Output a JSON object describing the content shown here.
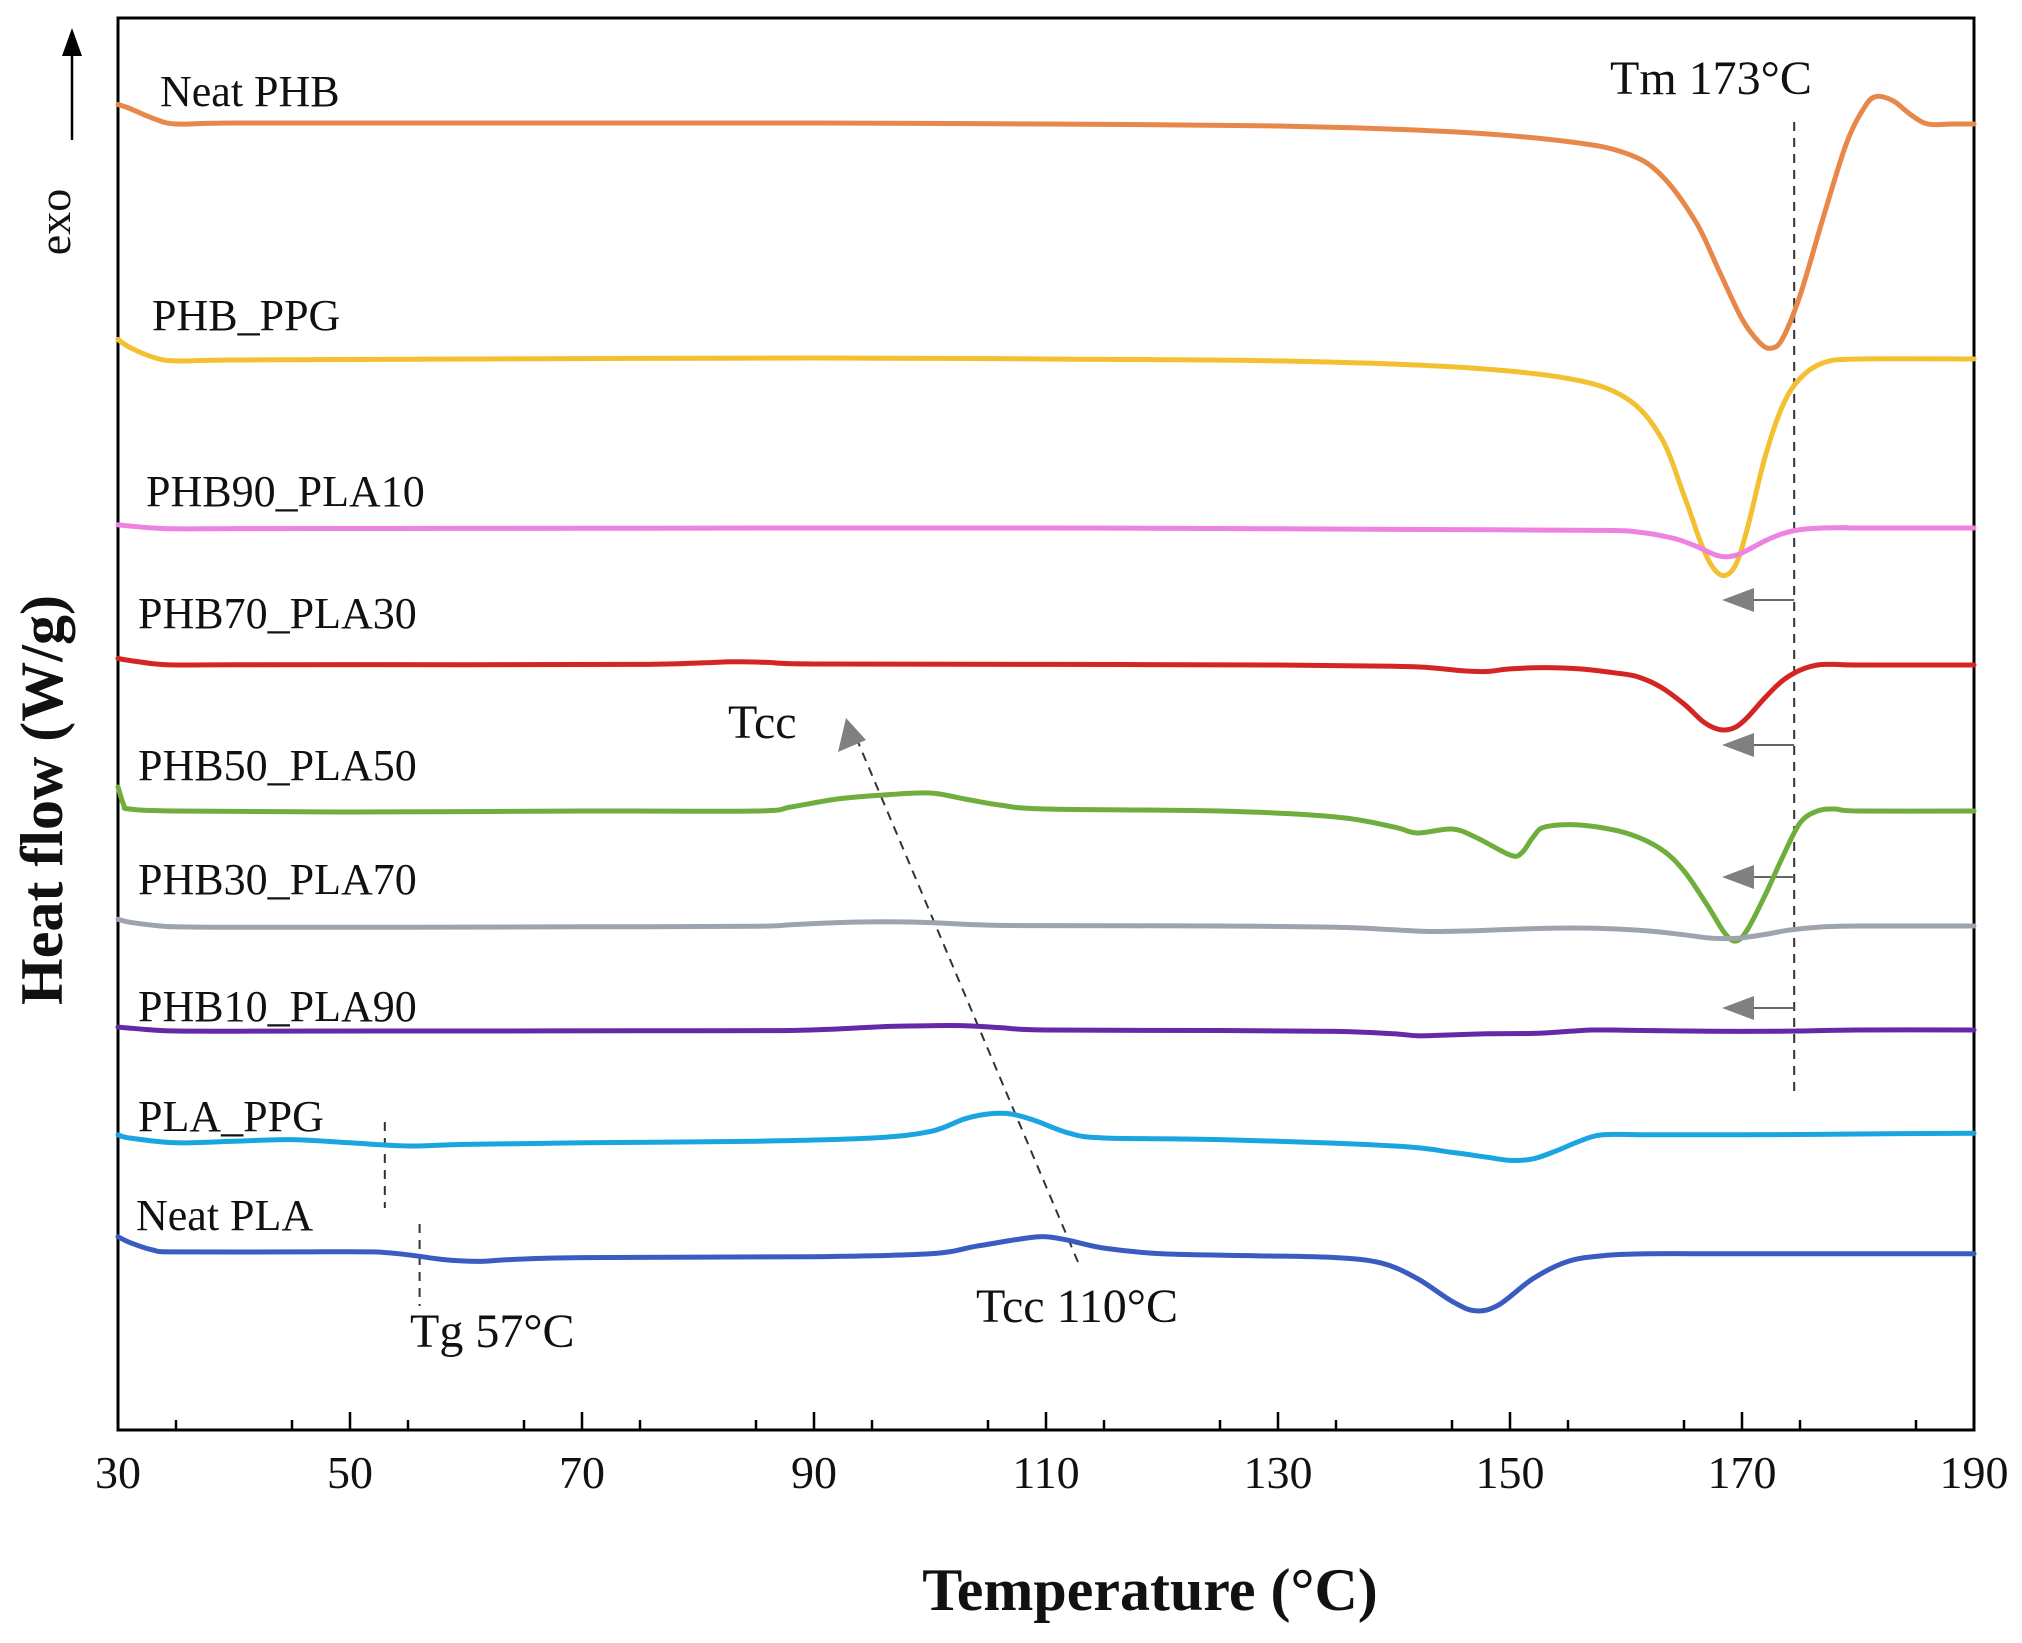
{
  "chart_data": {
    "type": "line",
    "xlabel": "Temperature (°C)",
    "ylabel": "Heat flow (W/g)",
    "exo_label": "exo",
    "xlim": [
      30,
      190
    ],
    "xticks": [
      30,
      50,
      70,
      90,
      110,
      130,
      150,
      170,
      190
    ],
    "grid": false,
    "series": [
      {
        "name": "Neat PHB",
        "color": "#E8874A",
        "points": [
          [
            30,
            1.0
          ],
          [
            31,
            0.8
          ],
          [
            33,
            0.3
          ],
          [
            35,
            0.0
          ],
          [
            40,
            0.05
          ],
          [
            60,
            0.05
          ],
          [
            90,
            0.05
          ],
          [
            110,
            0.0
          ],
          [
            130,
            -0.1
          ],
          [
            145,
            -0.4
          ],
          [
            155,
            -0.9
          ],
          [
            160,
            -1.5
          ],
          [
            163,
            -2.6
          ],
          [
            166,
            -5.0
          ],
          [
            168,
            -7.5
          ],
          [
            170,
            -10.0
          ],
          [
            171.5,
            -11.2
          ],
          [
            172.5,
            -11.5
          ],
          [
            173.5,
            -11.0
          ],
          [
            175,
            -8.8
          ],
          [
            177,
            -4.8
          ],
          [
            179,
            -1.0
          ],
          [
            180.5,
            0.8
          ],
          [
            181.5,
            1.4
          ],
          [
            183,
            1.2
          ],
          [
            184.5,
            0.5
          ],
          [
            186,
            0.0
          ],
          [
            188,
            0.0
          ],
          [
            190,
            0.0
          ]
        ]
      },
      {
        "name": "PHB_PPG",
        "color": "#F2C030",
        "points": [
          [
            30,
            1.0
          ],
          [
            31,
            0.6
          ],
          [
            33,
            0.1
          ],
          [
            35,
            -0.1
          ],
          [
            40,
            -0.05
          ],
          [
            60,
            0.0
          ],
          [
            90,
            0.05
          ],
          [
            110,
            0.0
          ],
          [
            130,
            -0.1
          ],
          [
            145,
            -0.4
          ],
          [
            155,
            -1.0
          ],
          [
            160,
            -2.0
          ],
          [
            163,
            -4.0
          ],
          [
            165,
            -7.0
          ],
          [
            166.5,
            -9.5
          ],
          [
            167.5,
            -10.7
          ],
          [
            168.5,
            -11.1
          ],
          [
            169.5,
            -10.5
          ],
          [
            170.5,
            -8.6
          ],
          [
            172,
            -5.0
          ],
          [
            173.5,
            -2.4
          ],
          [
            175,
            -1.0
          ],
          [
            177,
            -0.2
          ],
          [
            180,
            0.0
          ],
          [
            190,
            0.0
          ]
        ]
      },
      {
        "name": "PHB90_PLA10",
        "color": "#EE82E0",
        "points": [
          [
            30,
            0.8
          ],
          [
            31,
            0.5
          ],
          [
            33,
            0.0
          ],
          [
            35,
            -0.2
          ],
          [
            40,
            -0.15
          ],
          [
            60,
            -0.1
          ],
          [
            75,
            -0.05
          ],
          [
            90,
            0.0
          ],
          [
            110,
            0.0
          ],
          [
            130,
            -0.2
          ],
          [
            145,
            -0.4
          ],
          [
            158,
            -0.6
          ],
          [
            161,
            -1.0
          ],
          [
            164,
            -2.5
          ],
          [
            166,
            -4.5
          ],
          [
            167.5,
            -6.5
          ],
          [
            168.5,
            -7.2
          ],
          [
            169.5,
            -6.8
          ],
          [
            170.5,
            -5.5
          ],
          [
            172,
            -3.2
          ],
          [
            173.5,
            -1.4
          ],
          [
            175,
            -0.4
          ],
          [
            177,
            0.0
          ],
          [
            179,
            0.1
          ],
          [
            180,
            0.0
          ],
          [
            190,
            0.0
          ]
        ]
      },
      {
        "name": "PHB70_PLA30",
        "color": "#D42525",
        "points": [
          [
            30,
            1.0
          ],
          [
            31,
            0.7
          ],
          [
            33,
            0.2
          ],
          [
            35,
            0.0
          ],
          [
            40,
            0.05
          ],
          [
            60,
            0.05
          ],
          [
            75,
            0.1
          ],
          [
            80,
            0.3
          ],
          [
            83,
            0.5
          ],
          [
            86,
            0.4
          ],
          [
            90,
            0.15
          ],
          [
            110,
            0.1
          ],
          [
            130,
            0.0
          ],
          [
            140,
            -0.2
          ],
          [
            143,
            -0.4
          ],
          [
            146,
            -0.9
          ],
          [
            148,
            -1.0
          ],
          [
            150,
            -0.6
          ],
          [
            153,
            -0.4
          ],
          [
            156,
            -0.6
          ],
          [
            159,
            -1.2
          ],
          [
            161,
            -1.8
          ],
          [
            163,
            -3.4
          ],
          [
            165,
            -6.0
          ],
          [
            166.5,
            -8.5
          ],
          [
            167.5,
            -9.6
          ],
          [
            168.5,
            -10.0
          ],
          [
            169.5,
            -9.5
          ],
          [
            170.5,
            -8.0
          ],
          [
            172,
            -5.0
          ],
          [
            173.5,
            -2.4
          ],
          [
            175,
            -0.8
          ],
          [
            176.5,
            0.0
          ],
          [
            178,
            0.1
          ],
          [
            180,
            0.0
          ],
          [
            190,
            0.0
          ]
        ]
      },
      {
        "name": "PHB50_PLA50",
        "color": "#6FAE3C",
        "points": [
          [
            30,
            1.2
          ],
          [
            30.5,
            0.3
          ],
          [
            31,
            0.1
          ],
          [
            35,
            0.0
          ],
          [
            50,
            -0.05
          ],
          [
            70,
            0.0
          ],
          [
            85,
            0.0
          ],
          [
            88,
            0.2
          ],
          [
            92,
            0.6
          ],
          [
            96,
            0.8
          ],
          [
            100,
            0.9
          ],
          [
            103,
            0.6
          ],
          [
            106,
            0.3
          ],
          [
            110,
            0.1
          ],
          [
            125,
            0.0
          ],
          [
            135,
            -0.3
          ],
          [
            140,
            -0.8
          ],
          [
            142,
            -1.1
          ],
          [
            145,
            -0.9
          ],
          [
            147,
            -1.3
          ],
          [
            150,
            -2.2
          ],
          [
            151,
            -2.1
          ],
          [
            152,
            -1.3
          ],
          [
            153,
            -0.8
          ],
          [
            156,
            -0.7
          ],
          [
            160,
            -1.1
          ],
          [
            163,
            -1.9
          ],
          [
            165,
            -3.0
          ],
          [
            167,
            -4.7
          ],
          [
            168.5,
            -6.1
          ],
          [
            169.5,
            -6.5
          ],
          [
            170.5,
            -5.9
          ],
          [
            172,
            -4.2
          ],
          [
            173.5,
            -2.3
          ],
          [
            175,
            -0.6
          ],
          [
            176.5,
            0.0
          ],
          [
            178,
            0.1
          ],
          [
            180,
            0.0
          ],
          [
            190,
            0.0
          ]
        ]
      },
      {
        "name": "PHB30_PLA70",
        "color": "#9EA4AE",
        "points": [
          [
            30,
            1.6
          ],
          [
            31,
            0.9
          ],
          [
            33,
            0.2
          ],
          [
            35,
            -0.2
          ],
          [
            40,
            -0.3
          ],
          [
            55,
            -0.3
          ],
          [
            70,
            -0.2
          ],
          [
            85,
            -0.05
          ],
          [
            88,
            0.3
          ],
          [
            92,
            0.8
          ],
          [
            96,
            1.0
          ],
          [
            100,
            0.8
          ],
          [
            104,
            0.3
          ],
          [
            108,
            0.1
          ],
          [
            125,
            0.0
          ],
          [
            135,
            -0.3
          ],
          [
            140,
            -0.9
          ],
          [
            143,
            -1.3
          ],
          [
            146,
            -1.2
          ],
          [
            150,
            -0.8
          ],
          [
            154,
            -0.5
          ],
          [
            158,
            -0.6
          ],
          [
            162,
            -1.2
          ],
          [
            165,
            -2.1
          ],
          [
            167,
            -2.8
          ],
          [
            168.5,
            -3.0
          ],
          [
            170,
            -2.8
          ],
          [
            172,
            -2.0
          ],
          [
            174,
            -1.0
          ],
          [
            176,
            -0.4
          ],
          [
            178,
            -0.1
          ],
          [
            180,
            0.0
          ],
          [
            190,
            0.0
          ]
        ]
      },
      {
        "name": "PHB10_PLA90",
        "color": "#6528A8",
        "points": [
          [
            30,
            0.6
          ],
          [
            31,
            0.4
          ],
          [
            33,
            0.0
          ],
          [
            35,
            -0.2
          ],
          [
            40,
            -0.25
          ],
          [
            60,
            -0.2
          ],
          [
            80,
            -0.15
          ],
          [
            88,
            -0.1
          ],
          [
            92,
            0.2
          ],
          [
            96,
            0.7
          ],
          [
            100,
            0.9
          ],
          [
            103,
            0.9
          ],
          [
            106,
            0.5
          ],
          [
            110,
            0.0
          ],
          [
            125,
            -0.1
          ],
          [
            135,
            -0.3
          ],
          [
            140,
            -0.8
          ],
          [
            142,
            -1.2
          ],
          [
            144,
            -1.1
          ],
          [
            148,
            -0.8
          ],
          [
            152,
            -0.7
          ],
          [
            155,
            -0.3
          ],
          [
            157,
            0.0
          ],
          [
            160,
            -0.05
          ],
          [
            165,
            -0.2
          ],
          [
            170,
            -0.3
          ],
          [
            175,
            -0.2
          ],
          [
            180,
            0.0
          ],
          [
            190,
            0.0
          ]
        ]
      },
      {
        "name": "PLA_PPG",
        "color": "#1AA5E0",
        "points": [
          [
            30,
            0.2
          ],
          [
            31,
            0.0
          ],
          [
            35,
            -0.3
          ],
          [
            40,
            -0.2
          ],
          [
            45,
            -0.1
          ],
          [
            50,
            -0.3
          ],
          [
            55,
            -0.5
          ],
          [
            60,
            -0.4
          ],
          [
            70,
            -0.3
          ],
          [
            85,
            -0.2
          ],
          [
            95,
            0.0
          ],
          [
            100,
            0.4
          ],
          [
            103,
            1.2
          ],
          [
            105,
            1.5
          ],
          [
            107,
            1.5
          ],
          [
            109,
            1.1
          ],
          [
            112,
            0.3
          ],
          [
            115,
            0.0
          ],
          [
            125,
            -0.1
          ],
          [
            140,
            -0.5
          ],
          [
            145,
            -0.9
          ],
          [
            148,
            -1.2
          ],
          [
            150,
            -1.4
          ],
          [
            152,
            -1.3
          ],
          [
            154,
            -0.8
          ],
          [
            156,
            -0.2
          ],
          [
            158,
            0.2
          ],
          [
            162,
            0.2
          ],
          [
            170,
            0.2
          ],
          [
            180,
            0.25
          ],
          [
            190,
            0.3
          ]
        ]
      },
      {
        "name": "Neat PLA",
        "color": "#3A5BC0",
        "points": [
          [
            30,
            0.7
          ],
          [
            31,
            0.4
          ],
          [
            33,
            0.0
          ],
          [
            35,
            -0.1
          ],
          [
            45,
            -0.1
          ],
          [
            52,
            -0.1
          ],
          [
            55,
            -0.25
          ],
          [
            58,
            -0.5
          ],
          [
            61,
            -0.6
          ],
          [
            64,
            -0.5
          ],
          [
            70,
            -0.4
          ],
          [
            90,
            -0.35
          ],
          [
            100,
            -0.2
          ],
          [
            104,
            0.2
          ],
          [
            108,
            0.6
          ],
          [
            110,
            0.7
          ],
          [
            112,
            0.5
          ],
          [
            115,
            0.1
          ],
          [
            120,
            -0.2
          ],
          [
            128,
            -0.3
          ],
          [
            135,
            -0.4
          ],
          [
            139,
            -0.7
          ],
          [
            142,
            -1.5
          ],
          [
            145,
            -2.7
          ],
          [
            147,
            -3.2
          ],
          [
            149,
            -2.9
          ],
          [
            152,
            -1.5
          ],
          [
            155,
            -0.6
          ],
          [
            158,
            -0.3
          ],
          [
            162,
            -0.2
          ],
          [
            170,
            -0.2
          ],
          [
            190,
            -0.2
          ]
        ]
      }
    ],
    "annotations": {
      "tm": "Tm 173°C",
      "tcc_top": "Tcc",
      "tcc_bottom": "Tcc 110°C",
      "tg": "Tg 57°C"
    }
  }
}
